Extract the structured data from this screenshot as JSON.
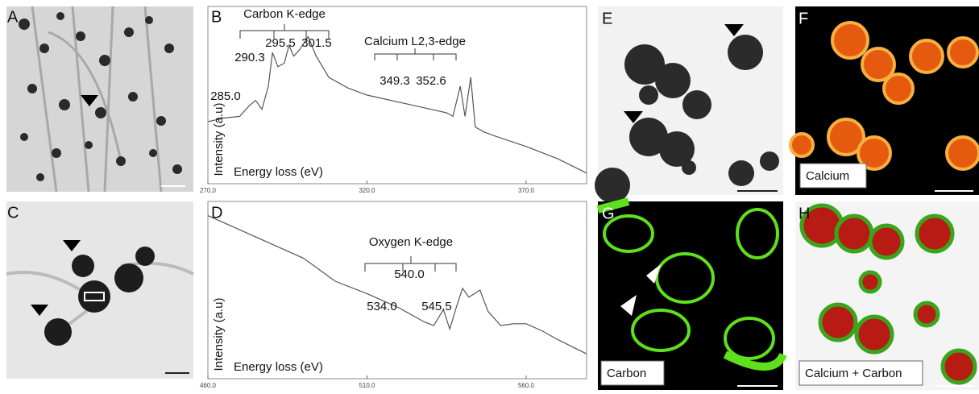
{
  "panel_labels": [
    "A",
    "B",
    "C",
    "D",
    "E",
    "F",
    "G",
    "H"
  ],
  "map_labels": [
    "Calcium",
    "Carbon",
    "Calcium + Carbon"
  ],
  "chart_data": [
    {
      "type": "line",
      "y_label": "Intensity (a.u)",
      "x_label": "Energy loss (eV)",
      "color": "#555555",
      "annotations": [
        "Carbon K-edge",
        "295.5",
        "301.5",
        "290.3",
        "285.0",
        "Calcium L2,3-edge",
        "349.3",
        "352.6"
      ],
      "x": [
        270,
        275,
        280,
        283,
        285,
        287,
        289,
        290.3,
        292,
        294,
        295.5,
        297,
        299,
        301.5,
        304,
        308,
        314,
        320,
        330,
        340,
        345,
        347,
        349.3,
        350.8,
        352.6,
        354,
        357,
        360,
        370,
        380,
        389
      ],
      "values": [
        35,
        37,
        38,
        44,
        47,
        42,
        55,
        74,
        66,
        68,
        78,
        72,
        76,
        83,
        72,
        60,
        54,
        50,
        46,
        42,
        40,
        38,
        55,
        38,
        60,
        32,
        29,
        27,
        21,
        14,
        6
      ],
      "xlim": [
        270,
        389
      ],
      "xticks": [
        {
          "value": 270,
          "label": "270.0"
        },
        {
          "value": 320,
          "label": "320.0"
        },
        {
          "value": 370,
          "label": "370.0"
        }
      ],
      "ylim": [
        0,
        100
      ]
    },
    {
      "type": "line",
      "y_label": "Intensity (a.u)",
      "x_label": "Energy loss (eV)",
      "color": "#555555",
      "annotations": [
        "Oxygen K-edge",
        "540.0",
        "534.0",
        "545.5"
      ],
      "x": [
        460,
        470,
        480,
        490,
        500,
        510,
        520,
        528,
        531,
        534,
        536,
        538,
        540,
        542,
        545.5,
        548,
        552,
        556,
        560,
        565,
        570,
        579
      ],
      "values": [
        92,
        84,
        76,
        68,
        55,
        48,
        40,
        32,
        30,
        39,
        28,
        40,
        51,
        46,
        50,
        38,
        30,
        31,
        31,
        27,
        22,
        14
      ],
      "xlim": [
        460,
        579
      ],
      "xticks": [
        {
          "value": 460,
          "label": "460.0"
        },
        {
          "value": 510,
          "label": "510.0"
        },
        {
          "value": 560,
          "label": "560.0"
        }
      ],
      "ylim": [
        0,
        100
      ]
    }
  ]
}
